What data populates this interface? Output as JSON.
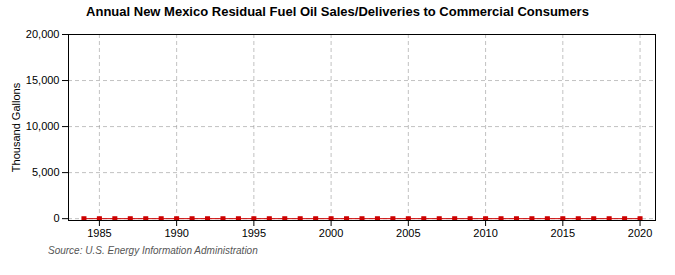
{
  "chart_data": {
    "type": "line",
    "title": "Annual New Mexico Residual Fuel Oil Sales/Deliveries to Commercial Consumers",
    "ylabel": "Thousand Gallons",
    "annotations": [
      "Source: U.S. Energy Information Administration"
    ],
    "x": [
      1984,
      1985,
      1986,
      1987,
      1988,
      1989,
      1990,
      1991,
      1992,
      1993,
      1994,
      1995,
      1996,
      1997,
      1998,
      1999,
      2000,
      2001,
      2002,
      2003,
      2004,
      2005,
      2006,
      2007,
      2008,
      2009,
      2010,
      2011,
      2012,
      2013,
      2014,
      2015,
      2016,
      2017,
      2018,
      2019,
      2020
    ],
    "series": [
      {
        "color": "#cc0000",
        "marker": "square",
        "values": [
          0,
          0,
          0,
          0,
          0,
          0,
          0,
          0,
          0,
          0,
          0,
          0,
          0,
          0,
          0,
          0,
          0,
          0,
          0,
          0,
          0,
          0,
          0,
          0,
          0,
          0,
          0,
          0,
          0,
          0,
          0,
          0,
          0,
          0,
          0,
          0,
          0
        ]
      }
    ],
    "xlim": [
      1983,
      2021
    ],
    "xticks": [
      1985,
      1990,
      1995,
      2000,
      2005,
      2010,
      2015,
      2020
    ],
    "ylim": [
      -200,
      20000
    ],
    "yticks": [
      0,
      {
        "value": 5000,
        "label": "5,000"
      },
      {
        "value": 10000,
        "label": "10,000"
      },
      {
        "value": 15000,
        "label": "15,000"
      },
      {
        "value": 20000,
        "label": "20,000"
      }
    ],
    "grid": true
  }
}
